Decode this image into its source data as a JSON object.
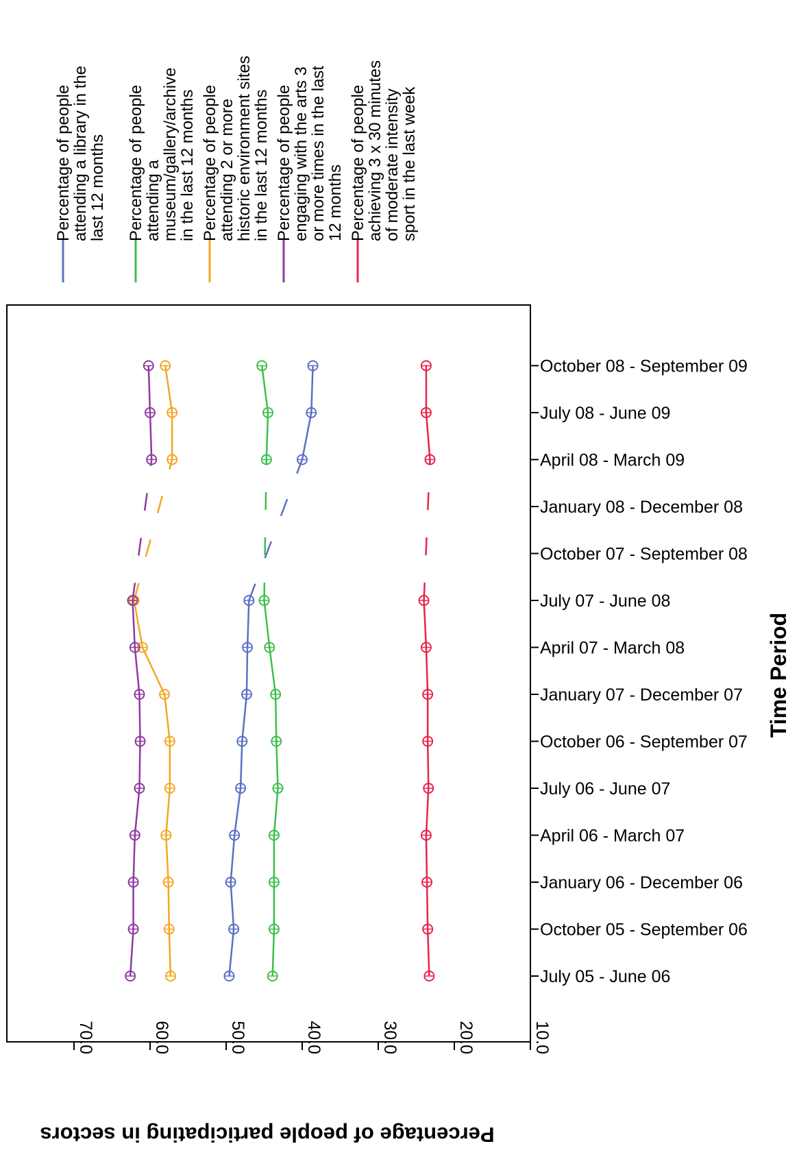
{
  "chart_data": {
    "type": "line",
    "orientation": "rotated-90-clockwise",
    "title": "",
    "xlabel": "Time Period",
    "ylabel": "Percentage of people participating in sectors",
    "ylim": [
      10,
      70
    ],
    "yticks": [
      "10.0",
      "20.0",
      "30.0",
      "40.0",
      "50.0",
      "60.0",
      "70.0"
    ],
    "grid": false,
    "legend_position": "top",
    "categories": [
      "July 05 - June 06",
      "October 05 - September 06",
      "January 06 - December 06",
      "April 06 - March 07",
      "July 06 - June 07",
      "October 06 - September 07",
      "January 07 - December 07",
      "April 07 - March 08",
      "July 07 - June 08",
      "October 07 - September 08",
      "January 08 - December 08",
      "April 08 - March 09",
      "July 08 - June 09",
      "October 08 - September 09"
    ],
    "series": [
      {
        "name": "Percentage of people attending a library in the last 12 months",
        "legend_lines": [
          "Percentage of people",
          "attending a library in the",
          "last 12 months"
        ],
        "color": "#5b6fc4",
        "values": [
          49.6,
          49.0,
          49.4,
          48.9,
          48.1,
          47.9,
          47.3,
          47.2,
          47.0,
          null,
          null,
          40.0,
          38.8,
          38.6
        ]
      },
      {
        "name": "Percentage of people attending a museum/gallery/archive in the last 12 months",
        "legend_lines": [
          "Percentage of people",
          "attending a",
          "museum/gallery/archive",
          "in the last 12 months"
        ],
        "color": "#3cbf4a",
        "values": [
          43.9,
          43.7,
          43.7,
          43.7,
          43.2,
          43.4,
          43.5,
          44.3,
          45.0,
          null,
          null,
          44.7,
          44.5,
          45.3
        ]
      },
      {
        "name": "Percentage of people attending 2 or more historic environment sites in the last 12 months",
        "legend_lines": [
          "Percentage of people",
          "attending 2 or more",
          "historic environment sites",
          "in the last 12 months"
        ],
        "color": "#f5a623",
        "values": [
          57.3,
          57.5,
          57.6,
          57.9,
          57.4,
          57.4,
          58.1,
          61.0,
          62.1,
          null,
          null,
          57.1,
          57.1,
          58.0
        ]
      },
      {
        "name": "Percentage of people engaging with the arts 3 or more times in the last 12 months",
        "legend_lines": [
          "Percentage of people",
          "engaging with the arts 3",
          "or more times in the last",
          "12 months"
        ],
        "color": "#8e3b9e",
        "values": [
          62.6,
          62.2,
          62.2,
          62.0,
          61.4,
          61.3,
          61.4,
          62.0,
          62.3,
          null,
          null,
          59.8,
          60.0,
          60.2
        ]
      },
      {
        "name": "Percentage of people achieving 3 x 30 minutes of moderate intensity sport in the last week",
        "legend_lines": [
          "Percentage of people",
          "achieving 3 x 30 minutes",
          "of moderate intensity",
          "sport in the last week"
        ],
        "color": "#e8234a",
        "values": [
          23.3,
          23.5,
          23.6,
          23.7,
          23.4,
          23.5,
          23.5,
          23.7,
          24.0,
          null,
          null,
          23.2,
          23.7,
          23.7
        ]
      }
    ]
  }
}
